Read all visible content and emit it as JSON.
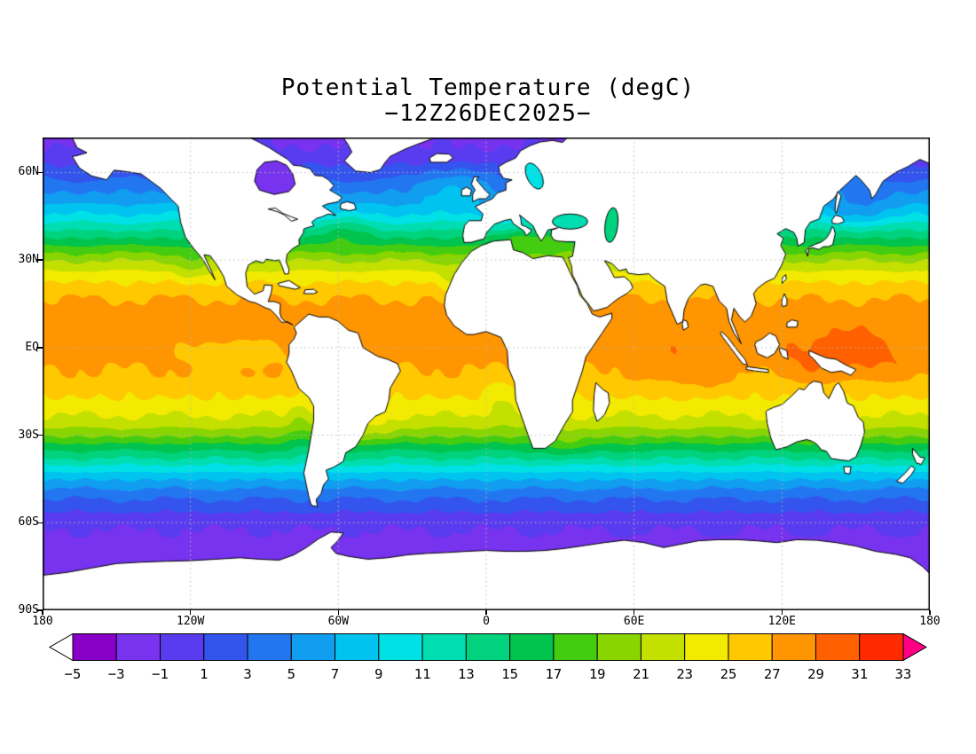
{
  "page": {
    "background": "#ffffff"
  },
  "chart_data": {
    "type": "heatmap",
    "title": "Potential Temperature (degC)",
    "subtitle": "−12Z26DEC2025−",
    "projection": "equirectangular",
    "lon_range": [
      -180,
      180
    ],
    "lat_range": [
      -90,
      72
    ],
    "xticks": [
      {
        "lon": -180,
        "label": "180"
      },
      {
        "lon": -120,
        "label": "120W"
      },
      {
        "lon": -60,
        "label": "60W"
      },
      {
        "lon": 0,
        "label": "0"
      },
      {
        "lon": 60,
        "label": "60E"
      },
      {
        "lon": 120,
        "label": "120E"
      },
      {
        "lon": 180,
        "label": "180"
      }
    ],
    "yticks": [
      {
        "lat": 60,
        "label": "60N"
      },
      {
        "lat": 30,
        "label": "30N"
      },
      {
        "lat": 0,
        "label": "EQ"
      },
      {
        "lat": -30,
        "label": "30S"
      },
      {
        "lat": -60,
        "label": "60S"
      },
      {
        "lat": -90,
        "label": "90S"
      }
    ],
    "grid": {
      "lons": [
        -120,
        -60,
        0,
        60,
        120
      ],
      "lats": [
        -60,
        -30,
        0,
        30,
        60
      ],
      "style": "dotted",
      "color": "#b8b8b8"
    },
    "frame_color": "#000000",
    "land_color": "#ffffff",
    "coast_color": "#000000",
    "colorbar": {
      "levels": [
        -5,
        -3,
        -1,
        1,
        3,
        5,
        7,
        9,
        11,
        13,
        15,
        17,
        19,
        21,
        23,
        25,
        27,
        29,
        31,
        33
      ],
      "labels": [
        "−5",
        "−3",
        "−1",
        "1",
        "3",
        "5",
        "7",
        "9",
        "11",
        "13",
        "15",
        "17",
        "19",
        "21",
        "23",
        "25",
        "27",
        "29",
        "31",
        "33"
      ],
      "colors": [
        "#8800c8",
        "#7733ee",
        "#5a3cf0",
        "#3355ee",
        "#2277f0",
        "#119df0",
        "#00c3f0",
        "#00e1e6",
        "#00ddb0",
        "#00d27d",
        "#00c44d",
        "#44cc11",
        "#88d500",
        "#c3e000",
        "#f2ea00",
        "#ffc800",
        "#ff9500",
        "#ff6000",
        "#ff2a00"
      ],
      "below_color": "#ffffff",
      "above_color": "#ff0084",
      "outline": "#000000"
    },
    "field": {
      "units": "degC",
      "contour_interval": 2,
      "zonal_profile": [
        [
          -90,
          -2.0
        ],
        [
          -78,
          -2.0
        ],
        [
          -72,
          -1.9
        ],
        [
          -66,
          -1.6
        ],
        [
          -62,
          -0.9
        ],
        [
          -58,
          0.4
        ],
        [
          -54,
          2.0
        ],
        [
          -50,
          4.0
        ],
        [
          -46,
          6.5
        ],
        [
          -42,
          9.5
        ],
        [
          -38,
          13.0
        ],
        [
          -34,
          16.0
        ],
        [
          -30,
          19.5
        ],
        [
          -26,
          22.0
        ],
        [
          -22,
          23.5
        ],
        [
          -18,
          24.8
        ],
        [
          -14,
          25.8
        ],
        [
          -10,
          26.6
        ],
        [
          -6,
          27.2
        ],
        [
          -2,
          27.6
        ],
        [
          2,
          27.8
        ],
        [
          6,
          28.0
        ],
        [
          10,
          28.0
        ],
        [
          14,
          27.6
        ],
        [
          18,
          26.6
        ],
        [
          22,
          25.2
        ],
        [
          26,
          23.2
        ],
        [
          30,
          20.8
        ],
        [
          34,
          17.8
        ],
        [
          38,
          14.6
        ],
        [
          42,
          11.6
        ],
        [
          46,
          8.8
        ],
        [
          50,
          6.6
        ],
        [
          54,
          4.6
        ],
        [
          58,
          2.8
        ],
        [
          62,
          1.2
        ],
        [
          66,
          -0.4
        ],
        [
          70,
          -1.2
        ],
        [
          72,
          -1.5
        ]
      ],
      "anomalies": [
        {
          "name": "west-pacific-warm-pool",
          "lon": 145,
          "lat": -3,
          "amp": 2.4,
          "rlon": 45,
          "rlat": 14
        },
        {
          "name": "indian-ocean-warm",
          "lon": 82,
          "lat": -7,
          "amp": 1.6,
          "rlon": 30,
          "rlat": 13
        },
        {
          "name": "east-pacific-cold-tongue",
          "lon": -103,
          "lat": -2,
          "amp": -2.4,
          "rlon": 32,
          "rlat": 7
        },
        {
          "name": "humboldt-cool",
          "lon": -75,
          "lat": -26,
          "amp": -2.0,
          "rlon": 9,
          "rlat": 14
        },
        {
          "name": "benguela-cool",
          "lon": 6,
          "lat": -19,
          "amp": -2.0,
          "rlon": 10,
          "rlat": 13
        },
        {
          "name": "canary-cool",
          "lon": -15,
          "lat": 22,
          "amp": -1.8,
          "rlon": 9,
          "rlat": 10
        },
        {
          "name": "california-cool",
          "lon": -119,
          "lat": 28,
          "amp": -1.8,
          "rlon": 11,
          "rlat": 9
        },
        {
          "name": "gulf-stream-warm",
          "lon": -58,
          "lat": 40,
          "amp": 2.2,
          "rlon": 18,
          "rlat": 8
        },
        {
          "name": "north-atlantic-drift-warm",
          "lon": -14,
          "lat": 56,
          "amp": 3.2,
          "rlon": 22,
          "rlat": 10
        },
        {
          "name": "oyashio-cool",
          "lon": 153,
          "lat": 47,
          "amp": -2.2,
          "rlon": 24,
          "rlat": 9
        },
        {
          "name": "agulhas-warm",
          "lon": 34,
          "lat": -34,
          "amp": 1.8,
          "rlon": 14,
          "rlat": 7
        },
        {
          "name": "brazil-warm",
          "lon": -46,
          "lat": -28,
          "amp": 1.5,
          "rlon": 12,
          "rlat": 8
        },
        {
          "name": "mediterranean-warm",
          "lon": 18,
          "lat": 37,
          "amp": 3.0,
          "rlon": 22,
          "rlat": 5
        },
        {
          "name": "red-sea-cool",
          "lon": 38.5,
          "lat": 19,
          "amp": -4.0,
          "rlon": 5,
          "rlat": 9
        }
      ]
    },
    "inland_seas": [
      {
        "name": "hudson-bay",
        "color": "#7733ee"
      },
      {
        "name": "baltic-sea",
        "color": "#00e1e6"
      },
      {
        "name": "black-sea",
        "color": "#00ddb0"
      },
      {
        "name": "caspian-sea",
        "color": "#00d27d"
      }
    ]
  }
}
